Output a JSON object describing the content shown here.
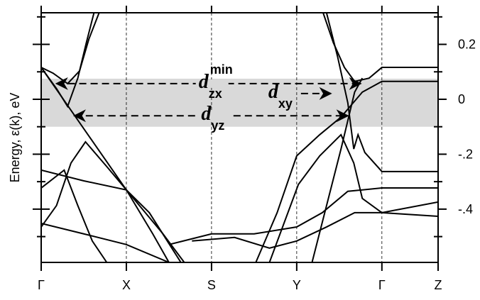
{
  "chart_data": {
    "type": "line",
    "ylabel": "Energy, ε(k), eV",
    "xlim": [
      0,
      4.66
    ],
    "ylim": [
      -0.594,
      0.315
    ],
    "xticks": [
      {
        "value": 0,
        "label": "Γ"
      },
      {
        "value": 1,
        "label": "X"
      },
      {
        "value": 2,
        "label": "S"
      },
      {
        "value": 3,
        "label": "Y"
      },
      {
        "value": 4,
        "label": "Γ"
      },
      {
        "value": 4.66,
        "label": "Z"
      }
    ],
    "yticks": [
      0.2,
      0,
      {
        "value": -0.2,
        "label": "-.2"
      },
      {
        "value": -0.4,
        "label": "-.4"
      }
    ],
    "yminor_ticks": [
      0.3,
      0.1,
      -0.1,
      -0.3,
      -0.5
    ],
    "band": {
      "range": [
        -0.1,
        0.075
      ],
      "color": "#d9d9d9"
    },
    "color": "#000000",
    "series": [
      {
        "x": [
          0,
          0.14,
          0.31,
          0.45,
          0.56,
          0.68
        ],
        "values": [
          0.116,
          0.095,
          0.057,
          0.103,
          0.219,
          0.315
        ]
      },
      {
        "x": [
          0,
          0.18,
          0.31,
          0.43,
          0.53,
          0.62
        ],
        "values": [
          0.116,
          0.039,
          -0.026,
          0.077,
          0.206,
          0.315
        ]
      },
      {
        "x": [
          0,
          1,
          1.31,
          1.5
        ],
        "values": [
          0.116,
          -0.33,
          -0.49,
          -0.594
        ]
      },
      {
        "x": [
          0,
          0.5,
          1,
          1.27,
          1.64
        ],
        "values": [
          -0.258,
          -0.297,
          -0.33,
          -0.413,
          -0.594
        ]
      },
      {
        "x": [
          0,
          0.27,
          0.43,
          0.6,
          0.77
        ],
        "values": [
          -0.323,
          -0.258,
          -0.387,
          -0.516,
          -0.594
        ]
      },
      {
        "x": [
          0,
          0.18,
          0.35,
          0.52,
          0.77,
          1,
          1.43,
          1.68
        ],
        "values": [
          -0.465,
          -0.387,
          -0.232,
          -0.155,
          -0.245,
          -0.33,
          -0.49,
          -0.594
        ]
      },
      {
        "x": [
          1.5,
          2,
          2.5,
          3,
          3.3,
          3.6,
          4,
          4.66
        ],
        "values": [
          -0.529,
          -0.49,
          -0.49,
          -0.465,
          -0.413,
          -0.335,
          -0.323,
          -0.323
        ]
      },
      {
        "x": [
          0,
          0.5,
          1,
          1.5
        ],
        "values": [
          -0.452,
          -0.49,
          -0.529,
          -0.594
        ]
      },
      {
        "x": [
          1.77,
          2.27,
          2.68,
          3,
          3.35,
          3.68,
          4,
          4.66
        ],
        "values": [
          -0.516,
          -0.503,
          -0.542,
          -0.516,
          -0.465,
          -0.413,
          -0.413,
          -0.374
        ]
      },
      {
        "x": [
          2.52,
          2.77,
          3,
          3.27,
          3.52,
          3.77,
          4,
          4.66
        ],
        "values": [
          -0.594,
          -0.413,
          -0.206,
          -0.129,
          -0.065,
          0.026,
          0.065,
          0.065
        ]
      },
      {
        "x": [
          3.31,
          3.43,
          3.56,
          3.68,
          3.85,
          4,
          4.66
        ],
        "values": [
          0.315,
          0.206,
          0.116,
          0.065,
          0.077,
          0.116,
          0.116
        ]
      },
      {
        "x": [
          3.35,
          3.48,
          3.6,
          3.67,
          3.72,
          3.8,
          4,
          4.66
        ],
        "values": [
          0.315,
          0.155,
          -0.013,
          -0.181,
          -0.129,
          -0.194,
          -0.263,
          -0.263
        ]
      },
      {
        "x": [
          2.68,
          3.02,
          3.27,
          3.52,
          3.67,
          3.77,
          4,
          4.66
        ],
        "values": [
          -0.594,
          -0.31,
          -0.206,
          -0.129,
          -0.232,
          -0.361,
          -0.413,
          -0.426
        ]
      },
      {
        "x": [
          3.18,
          3.52,
          3.68,
          3.77
        ],
        "values": [
          -0.594,
          -0.181,
          0.026,
          0.077
        ]
      }
    ],
    "annotations": [
      {
        "text": "d",
        "sub": "zx",
        "sup": "min",
        "x": [
          0.18,
          3.75
        ],
        "y": 0.057,
        "heads": "both"
      },
      {
        "text": "d",
        "sub": "xy",
        "x": [
          3.05,
          3.4
        ],
        "y": 0.021,
        "heads": "end"
      },
      {
        "text": "d",
        "sub": "yz",
        "x": [
          0.39,
          3.6
        ],
        "y": -0.06,
        "heads": "both"
      }
    ]
  }
}
